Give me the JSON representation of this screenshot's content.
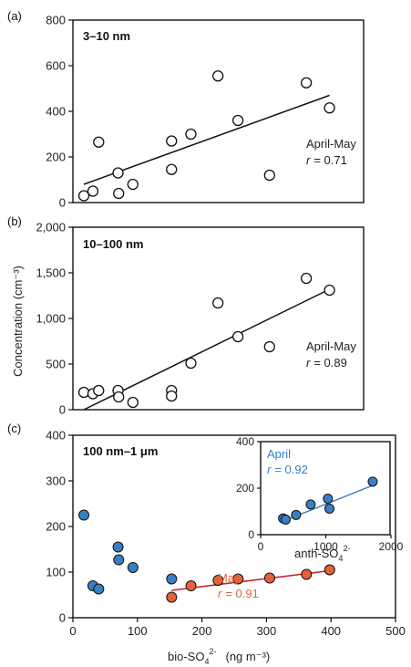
{
  "chart_data": [
    {
      "id": "a",
      "type": "scatter",
      "panel_label": "(a)",
      "size_range": "3–10 nm",
      "xlim": [
        0,
        400
      ],
      "ylim": [
        0,
        800
      ],
      "yticks": [
        "0",
        "200",
        "400",
        "600",
        "800"
      ],
      "marker": "open-circle",
      "points": [
        {
          "x": 17,
          "y": 30
        },
        {
          "x": 31,
          "y": 50
        },
        {
          "x": 40,
          "y": 265
        },
        {
          "x": 70,
          "y": 130
        },
        {
          "x": 71,
          "y": 40
        },
        {
          "x": 93,
          "y": 80
        },
        {
          "x": 153,
          "y": 270
        },
        {
          "x": 153,
          "y": 145
        },
        {
          "x": 183,
          "y": 300
        },
        {
          "x": 225,
          "y": 555
        },
        {
          "x": 256,
          "y": 360
        },
        {
          "x": 305,
          "y": 120
        },
        {
          "x": 362,
          "y": 525
        },
        {
          "x": 398,
          "y": 415
        }
      ],
      "fit": {
        "x": [
          17,
          398
        ],
        "y": [
          80,
          470
        ],
        "color": "#111111"
      },
      "season": "April-May",
      "r_text": "= 0.71"
    },
    {
      "id": "b",
      "type": "scatter",
      "panel_label": "(b)",
      "size_range": "10–100 nm",
      "xlim": [
        0,
        400
      ],
      "ylim": [
        0,
        2000
      ],
      "yticks": [
        "0",
        "500",
        "1,000",
        "1,500",
        "2,000"
      ],
      "ylabel": "Concentration (cm⁻³)",
      "marker": "open-circle",
      "points": [
        {
          "x": 17,
          "y": 190
        },
        {
          "x": 31,
          "y": 175
        },
        {
          "x": 40,
          "y": 210
        },
        {
          "x": 70,
          "y": 210
        },
        {
          "x": 71,
          "y": 140
        },
        {
          "x": 93,
          "y": 80
        },
        {
          "x": 153,
          "y": 210
        },
        {
          "x": 153,
          "y": 150
        },
        {
          "x": 183,
          "y": 510
        },
        {
          "x": 225,
          "y": 1170
        },
        {
          "x": 256,
          "y": 800
        },
        {
          "x": 305,
          "y": 690
        },
        {
          "x": 362,
          "y": 1440
        },
        {
          "x": 398,
          "y": 1310
        }
      ],
      "fit": {
        "x": [
          17,
          398
        ],
        "y": [
          0,
          1320
        ],
        "color": "#111111"
      },
      "season": "April-May",
      "r_text": "= 0.89"
    },
    {
      "id": "c",
      "type": "scatter",
      "panel_label": "(c)",
      "size_range": "100 nm–1 μm",
      "xlim": [
        0,
        500
      ],
      "ylim": [
        0,
        400
      ],
      "xticks": [
        "0",
        "100",
        "200",
        "300",
        "400",
        "500"
      ],
      "yticks": [
        "0",
        "100",
        "200",
        "300",
        "400"
      ],
      "xlabel_main": "bio-SO",
      "xlabel_sub": "4",
      "xlabel_sup": "2-",
      "xlabel_unit": "(ng m⁻³)",
      "series": [
        {
          "name": "April",
          "color": "#3a7fc4",
          "points": [
            {
              "x": 17,
              "y": 225
            },
            {
              "x": 31,
              "y": 70
            },
            {
              "x": 40,
              "y": 63
            },
            {
              "x": 70,
              "y": 155
            },
            {
              "x": 71,
              "y": 127
            },
            {
              "x": 93,
              "y": 110
            },
            {
              "x": 153,
              "y": 85
            }
          ]
        },
        {
          "name": "May",
          "color": "#e5623c",
          "points": [
            {
              "x": 153,
              "y": 45
            },
            {
              "x": 183,
              "y": 70
            },
            {
              "x": 225,
              "y": 82
            },
            {
              "x": 256,
              "y": 85
            },
            {
              "x": 305,
              "y": 87
            },
            {
              "x": 362,
              "y": 95
            },
            {
              "x": 398,
              "y": 105
            }
          ],
          "fit": {
            "x": [
              153,
              398
            ],
            "y": [
              60,
              103
            ],
            "color": "#cc2222"
          },
          "r_text": "= 0.91"
        }
      ]
    },
    {
      "id": "c-inset",
      "type": "scatter",
      "xlim": [
        0,
        2500
      ],
      "ylim": [
        0,
        400
      ],
      "xticks": [
        "0",
        "1000",
        "2000"
      ],
      "yticks": [
        "0",
        "200",
        "400"
      ],
      "xlabel_main": "anth-SO",
      "xlabel_sub": "4",
      "xlabel_sup": "2-",
      "series_name": "April",
      "r_text": "= 0.92",
      "color": "#3a7fc4",
      "fit_color": "#3a7fc4",
      "points": [
        {
          "x": 430,
          "y": 70
        },
        {
          "x": 480,
          "y": 65
        },
        {
          "x": 680,
          "y": 85
        },
        {
          "x": 960,
          "y": 130
        },
        {
          "x": 1290,
          "y": 155
        },
        {
          "x": 1320,
          "y": 112
        },
        {
          "x": 2150,
          "y": 228
        }
      ],
      "fit": {
        "x": [
          430,
          2150
        ],
        "y": [
          58,
          212
        ]
      }
    }
  ],
  "r_symbol": "r"
}
